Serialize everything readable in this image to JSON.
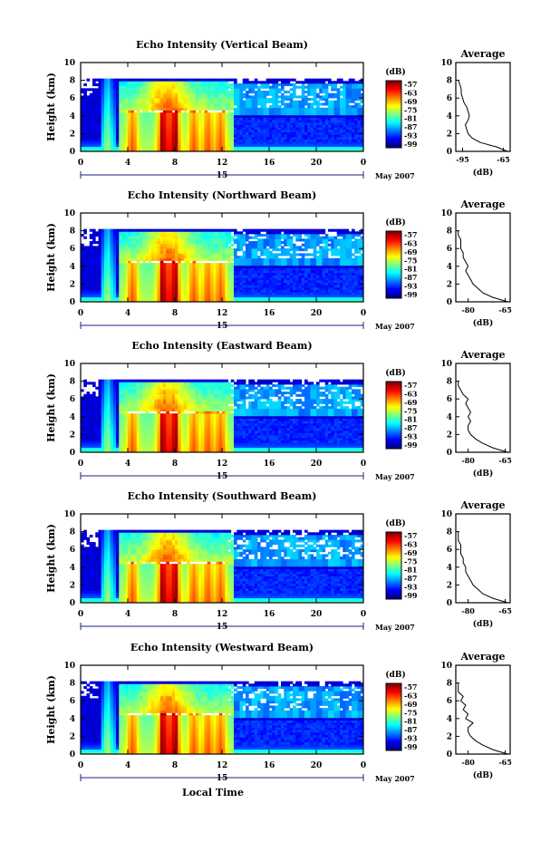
{
  "chart_data": [
    {
      "type": "heatmap",
      "title": "Echo Intensity (Vertical Beam)",
      "ylabel": "Height (km)",
      "xlim": [
        0,
        24
      ],
      "ylim": [
        0,
        10
      ],
      "xticks": [
        "0",
        "4",
        "8",
        "12",
        "16",
        "20",
        "0"
      ],
      "yticks": [
        "0",
        "2",
        "4",
        "6",
        "8",
        "10"
      ],
      "day_label": "15",
      "month_label": "May 2007",
      "colorbar": {
        "unit": "(dB)",
        "ticks": [
          "-57",
          "-63",
          "-69",
          "-75",
          "-81",
          "-87",
          "-93",
          "-99"
        ]
      },
      "average": {
        "title": "Average",
        "xlabel": "(dB)",
        "xticks": [
          "-95",
          "-65"
        ],
        "xlim": [
          -100,
          -60
        ],
        "yticks": [
          "0",
          "2",
          "4",
          "6",
          "8",
          "10"
        ],
        "profile": {
          "height": [
            0,
            0.5,
            1,
            1.5,
            2,
            2.5,
            3,
            3.5,
            4,
            4.5,
            5,
            5.5,
            6,
            6.5,
            7,
            7.5,
            8
          ],
          "db": [
            -62,
            -70,
            -82,
            -88,
            -91,
            -92,
            -93,
            -91,
            -90,
            -91,
            -92,
            -94,
            -95,
            -96,
            -96,
            -97,
            -98
          ]
        }
      }
    },
    {
      "type": "heatmap",
      "title": "Echo Intensity (Northward Beam)",
      "ylabel": "Height (km)",
      "xlim": [
        0,
        24
      ],
      "ylim": [
        0,
        10
      ],
      "xticks": [
        "0",
        "4",
        "8",
        "12",
        "16",
        "20",
        "0"
      ],
      "yticks": [
        "0",
        "2",
        "4",
        "6",
        "8",
        "10"
      ],
      "day_label": "15",
      "month_label": "May 2007",
      "colorbar": {
        "unit": "(dB)",
        "ticks": [
          "-57",
          "-63",
          "-69",
          "-75",
          "-81",
          "-87",
          "-93",
          "-99"
        ]
      },
      "average": {
        "title": "Average",
        "xlabel": "(dB)",
        "xticks": [
          "-80",
          "-65"
        ],
        "xlim": [
          -85,
          -63
        ],
        "yticks": [
          "0",
          "2",
          "4",
          "6",
          "8",
          "10"
        ],
        "profile": {
          "height": [
            0,
            0.5,
            1,
            1.5,
            2,
            2.5,
            3,
            3.5,
            4,
            4.5,
            5,
            5.5,
            6,
            6.5,
            7,
            7.5,
            8
          ],
          "db": [
            -64,
            -70,
            -74,
            -76,
            -78,
            -79,
            -80,
            -81,
            -80,
            -81,
            -82,
            -82,
            -83,
            -83,
            -83,
            -84,
            -84
          ]
        }
      }
    },
    {
      "type": "heatmap",
      "title": "Echo Intensity (Eastward Beam)",
      "ylabel": "Height (km)",
      "xlim": [
        0,
        24
      ],
      "ylim": [
        0,
        10
      ],
      "xticks": [
        "0",
        "4",
        "8",
        "12",
        "16",
        "20",
        "0"
      ],
      "yticks": [
        "0",
        "2",
        "4",
        "6",
        "8",
        "10"
      ],
      "day_label": "15",
      "month_label": "May 2007",
      "colorbar": {
        "unit": "(dB)",
        "ticks": [
          "-57",
          "-63",
          "-69",
          "-75",
          "-81",
          "-87",
          "-93",
          "-99"
        ]
      },
      "average": {
        "title": "Average",
        "xlabel": "(dB)",
        "xticks": [
          "-80",
          "-65"
        ],
        "xlim": [
          -85,
          -63
        ],
        "yticks": [
          "0",
          "2",
          "4",
          "6",
          "8",
          "10"
        ],
        "profile": {
          "height": [
            0,
            0.5,
            1,
            1.5,
            2,
            2.5,
            3,
            3.5,
            4,
            4.5,
            5,
            5.5,
            6,
            6.5,
            7,
            7.5,
            8
          ],
          "db": [
            -64,
            -70,
            -74,
            -77,
            -79,
            -80,
            -80,
            -79,
            -80,
            -79,
            -80,
            -81,
            -80,
            -82,
            -83,
            -84,
            -84
          ]
        }
      }
    },
    {
      "type": "heatmap",
      "title": "Echo Intensity (Southward Beam)",
      "ylabel": "Height (km)",
      "xlim": [
        0,
        24
      ],
      "ylim": [
        0,
        10
      ],
      "xticks": [
        "0",
        "4",
        "8",
        "12",
        "16",
        "20",
        "0"
      ],
      "yticks": [
        "0",
        "2",
        "4",
        "6",
        "8",
        "10"
      ],
      "day_label": "15",
      "month_label": "May 2007",
      "colorbar": {
        "unit": "(dB)",
        "ticks": [
          "-57",
          "-63",
          "-69",
          "-75",
          "-81",
          "-87",
          "-93",
          "-99"
        ]
      },
      "average": {
        "title": "Average",
        "xlabel": "(dB)",
        "xticks": [
          "-80",
          "-65"
        ],
        "xlim": [
          -85,
          -63
        ],
        "yticks": [
          "0",
          "2",
          "4",
          "6",
          "8",
          "10"
        ],
        "profile": {
          "height": [
            0,
            0.5,
            1,
            1.5,
            2,
            2.5,
            3,
            3.5,
            4,
            4.5,
            5,
            5.5,
            6,
            6.5,
            7,
            7.5,
            8
          ],
          "db": [
            -64,
            -70,
            -74,
            -76,
            -78,
            -79,
            -80,
            -81,
            -81,
            -82,
            -82,
            -83,
            -83,
            -83,
            -84,
            -84,
            -84
          ]
        }
      }
    },
    {
      "type": "heatmap",
      "title": "Echo Intensity (Westward Beam)",
      "ylabel": "Height (km)",
      "xlabel": "Local Time",
      "xlim": [
        0,
        24
      ],
      "ylim": [
        0,
        10
      ],
      "xticks": [
        "0",
        "4",
        "8",
        "12",
        "16",
        "20",
        "0"
      ],
      "yticks": [
        "0",
        "2",
        "4",
        "6",
        "8",
        "10"
      ],
      "day_label": "15",
      "month_label": "May 2007",
      "colorbar": {
        "unit": "(dB)",
        "ticks": [
          "-57",
          "-63",
          "-69",
          "-75",
          "-81",
          "-87",
          "-93",
          "-99"
        ]
      },
      "average": {
        "title": "Average",
        "xlabel": "(dB)",
        "xticks": [
          "-80",
          "-65"
        ],
        "xlim": [
          -85,
          -63
        ],
        "yticks": [
          "0",
          "2",
          "4",
          "6",
          "8",
          "10"
        ],
        "profile": {
          "height": [
            0,
            0.5,
            1,
            1.5,
            2,
            2.5,
            3,
            3.5,
            4,
            4.5,
            5,
            5.5,
            6,
            6.5,
            7,
            7.5,
            8
          ],
          "db": [
            -64,
            -70,
            -74,
            -77,
            -79,
            -80,
            -80,
            -78,
            -81,
            -80,
            -82,
            -81,
            -83,
            -82,
            -84,
            -84,
            -84
          ]
        }
      }
    }
  ]
}
